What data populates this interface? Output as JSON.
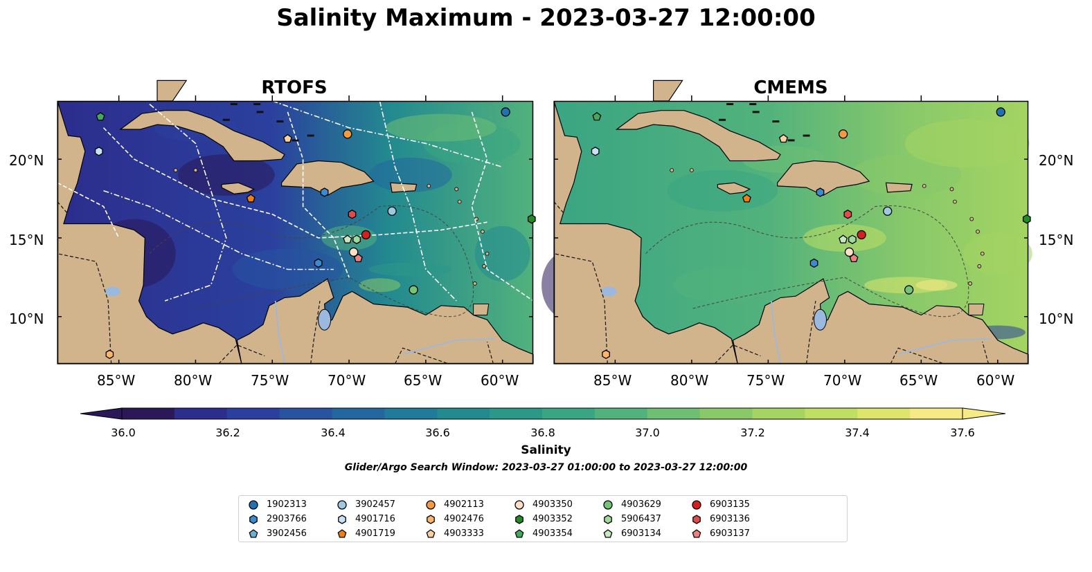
{
  "title": "Salinity Maximum - 2023-03-27 12:00:00",
  "panels": [
    {
      "title": "RTOFS"
    },
    {
      "title": "CMEMS"
    }
  ],
  "axes": {
    "lon_labels": [
      "85°W",
      "80°W",
      "75°W",
      "70°W",
      "65°W",
      "60°W"
    ],
    "lat_labels": [
      "20°N",
      "15°N",
      "10°N"
    ],
    "lon_ticks": [
      -85,
      -80,
      -75,
      -70,
      -65,
      -60
    ],
    "lat_ticks": [
      20,
      15,
      10
    ],
    "lon_range": [
      -89,
      -58
    ],
    "lat_range": [
      7,
      23.7
    ]
  },
  "colorbar": {
    "label": "Salinity",
    "ticks": [
      "36.0",
      "36.2",
      "36.4",
      "36.6",
      "36.8",
      "37.0",
      "37.2",
      "37.4",
      "37.6"
    ],
    "range": [
      35.9,
      37.7
    ],
    "extend": "both",
    "colors": [
      "#2a1858",
      "#2c2d8c",
      "#2b409e",
      "#2753a0",
      "#23679e",
      "#207a99",
      "#238a8f",
      "#2b9888",
      "#3aa583",
      "#52b27c",
      "#6ebf73",
      "#89c96a",
      "#a4d462",
      "#c1de64",
      "#dde56d",
      "#f5ea85"
    ]
  },
  "search_window": "Glider/Argo Search Window: 2023-03-27 01:00:00 to 2023-03-27 12:00:00",
  "colors": {
    "land": "#d2b48c",
    "lakes": "#9bb9de",
    "river": "#9bb9de",
    "contour": "#444444",
    "boundary_dash": "#111111"
  },
  "legend": [
    {
      "id": "1902313",
      "marker": "circle",
      "color": "#2171b5"
    },
    {
      "id": "2903766",
      "marker": "hexagon",
      "color": "#3c8ad0"
    },
    {
      "id": "3902456",
      "marker": "pentagon",
      "color": "#6baed6"
    },
    {
      "id": "3902457",
      "marker": "circle",
      "color": "#9ecae1"
    },
    {
      "id": "4901716",
      "marker": "hexagon",
      "color": "#c6e3f7"
    },
    {
      "id": "4901719",
      "marker": "pentagon",
      "color": "#f07f12"
    },
    {
      "id": "4902113",
      "marker": "circle",
      "color": "#f59a3f"
    },
    {
      "id": "4902476",
      "marker": "hexagon",
      "color": "#fdb46b"
    },
    {
      "id": "4903333",
      "marker": "pentagon",
      "color": "#fdd0a2"
    },
    {
      "id": "4903350",
      "marker": "circle",
      "color": "#fde0c5"
    },
    {
      "id": "4903352",
      "marker": "hexagon",
      "color": "#238b23"
    },
    {
      "id": "4903354",
      "marker": "pentagon",
      "color": "#41ab5d"
    },
    {
      "id": "4903629",
      "marker": "circle",
      "color": "#74c476"
    },
    {
      "id": "5906437",
      "marker": "hexagon",
      "color": "#a1d99b"
    },
    {
      "id": "6903134",
      "marker": "pentagon",
      "color": "#c7e9c0"
    },
    {
      "id": "6903135",
      "marker": "circle",
      "color": "#d62020"
    },
    {
      "id": "6903136",
      "marker": "hexagon",
      "color": "#e34a4a"
    },
    {
      "id": "6903137",
      "marker": "pentagon",
      "color": "#f08080"
    }
  ],
  "floats": [
    {
      "id": "1902313",
      "lon": -59.8,
      "lat": 23.0
    },
    {
      "id": "2903766",
      "lon": -71.6,
      "lat": 17.9
    },
    {
      "id": "3902457",
      "lon": -67.2,
      "lat": 16.7
    },
    {
      "id": "4901716",
      "lon": -86.3,
      "lat": 20.5
    },
    {
      "id": "4901719",
      "lon": -76.4,
      "lat": 17.5
    },
    {
      "id": "4902113",
      "lon": -70.1,
      "lat": 21.6
    },
    {
      "id": "4902476",
      "lon": -85.6,
      "lat": 7.6
    },
    {
      "id": "4903333",
      "lon": -74.0,
      "lat": 21.3
    },
    {
      "id": "4903350",
      "lon": -69.7,
      "lat": 14.1
    },
    {
      "id": "4903352",
      "lon": -58.1,
      "lat": 16.2
    },
    {
      "id": "4903354",
      "lon": -86.2,
      "lat": 22.7
    },
    {
      "id": "4903629",
      "lon": -65.8,
      "lat": 11.7
    },
    {
      "id": "5906437",
      "lon": -69.5,
      "lat": 14.9
    },
    {
      "id": "6903134",
      "lon": -70.1,
      "lat": 14.9
    },
    {
      "id": "6903135",
      "lon": -68.9,
      "lat": 15.2
    },
    {
      "id": "6903136",
      "lon": -69.8,
      "lat": 16.5
    },
    {
      "id": "6903137",
      "lon": -69.4,
      "lat": 13.7
    },
    {
      "id": "2903766b",
      "lon": -72.0,
      "lat": 13.4
    }
  ]
}
